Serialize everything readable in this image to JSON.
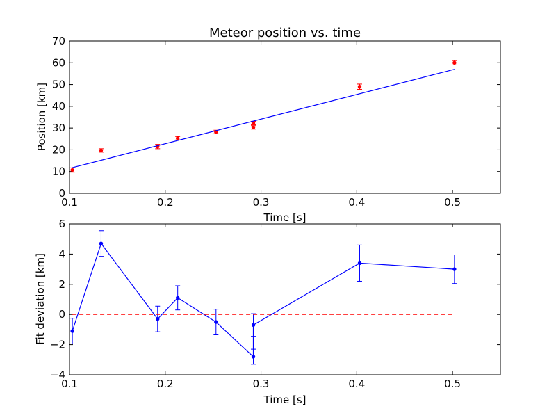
{
  "chart_data": [
    {
      "type": "scatter",
      "title": "Meteor position vs. time",
      "xlabel": "Time [s]",
      "ylabel": "Position [km]",
      "xlim": [
        0.1,
        0.55
      ],
      "ylim": [
        0,
        70
      ],
      "xticks": [
        "0.1",
        "0.2",
        "0.3",
        "0.4",
        "0.5"
      ],
      "yticks": [
        "0",
        "10",
        "20",
        "30",
        "40",
        "50",
        "60",
        "70"
      ],
      "grid": false,
      "series": [
        {
          "kind": "errorbar-points",
          "color": "#ff0000",
          "x": [
            0.103,
            0.133,
            0.192,
            0.213,
            0.253,
            0.292,
            0.292,
            0.403,
            0.502
          ],
          "y": [
            10.7,
            19.7,
            21.5,
            25.3,
            28.2,
            32.3,
            30.3,
            49.0,
            60.0
          ],
          "yerr": [
            1.0,
            0.8,
            1.0,
            0.8,
            0.8,
            0.8,
            0.8,
            1.2,
            1.0
          ]
        },
        {
          "kind": "line",
          "color": "#0000ff",
          "x": [
            0.103,
            0.502
          ],
          "y": [
            11.8,
            57.0
          ]
        }
      ]
    },
    {
      "type": "line",
      "title": "",
      "xlabel": "Time [s]",
      "ylabel": "Fit deviation [km]",
      "xlim": [
        0.1,
        0.55
      ],
      "ylim": [
        -4,
        6
      ],
      "xticks": [
        "0.1",
        "0.2",
        "0.3",
        "0.4",
        "0.5"
      ],
      "yticks": [
        "−4",
        "−2",
        "0",
        "2",
        "4",
        "6"
      ],
      "grid": false,
      "series": [
        {
          "kind": "errorbar-line",
          "color": "#0000ff",
          "x": [
            0.103,
            0.133,
            0.192,
            0.213,
            0.253,
            0.292,
            0.292,
            0.403,
            0.502
          ],
          "y": [
            -1.1,
            4.7,
            -0.3,
            1.1,
            -0.5,
            -2.8,
            -0.7,
            3.4,
            3.0
          ],
          "yerr": [
            0.85,
            0.85,
            0.85,
            0.8,
            0.85,
            0.5,
            0.75,
            1.2,
            0.95
          ]
        },
        {
          "kind": "reference-line",
          "color": "#ff0000",
          "dashed": true,
          "x": [
            0.103,
            0.502
          ],
          "y": [
            0,
            0
          ]
        }
      ]
    }
  ]
}
